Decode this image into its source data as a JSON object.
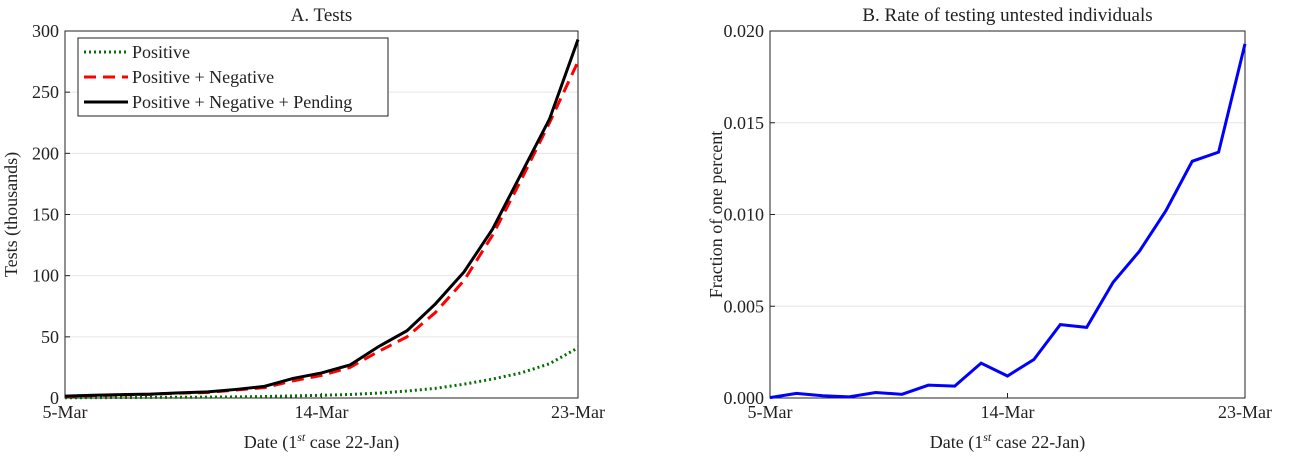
{
  "chart_data": [
    {
      "type": "line",
      "title": "A. Tests",
      "categories": [
        "5-Mar",
        null,
        null,
        null,
        null,
        null,
        null,
        null,
        null,
        "14-Mar",
        null,
        null,
        null,
        null,
        null,
        null,
        null,
        null,
        "23-Mar"
      ],
      "xlabel": [
        "Date (1",
        "st",
        " case 22-Jan)"
      ],
      "ylabel": "Tests (thousands)",
      "ylim": [
        0,
        300
      ],
      "yticks": [
        0,
        50,
        100,
        150,
        200,
        250,
        300
      ],
      "grid": true,
      "legend": "upper left",
      "series": [
        {
          "name": "Positive",
          "color": "#007000",
          "style": "dotted",
          "values": [
            0.2,
            0.3,
            0.4,
            0.5,
            0.6,
            0.7,
            0.9,
            1.2,
            1.7,
            2.2,
            2.9,
            4.0,
            5.7,
            7.9,
            11.3,
            15.5,
            20.5,
            28,
            41
          ]
        },
        {
          "name": "Positive + Negative",
          "color": "#ff0000",
          "style": "dashed",
          "values": [
            1.2,
            2,
            2.5,
            3,
            4,
            4.5,
            6.5,
            8.5,
            14,
            18.5,
            25,
            38,
            50,
            70,
            96,
            133,
            178,
            225,
            275
          ]
        },
        {
          "name": "Positive + Negative + Pending",
          "color": "#000000",
          "style": "solid",
          "values": [
            1.5,
            2.3,
            2.8,
            3.2,
            4.2,
            5,
            7,
            9.5,
            16,
            20.5,
            27,
            42,
            55,
            77,
            103,
            138,
            183,
            228,
            293
          ]
        }
      ]
    },
    {
      "type": "line",
      "title": "B. Rate of testing untested individuals",
      "categories": [
        "5-Mar",
        null,
        null,
        null,
        null,
        null,
        null,
        null,
        null,
        "14-Mar",
        null,
        null,
        null,
        null,
        null,
        null,
        null,
        null,
        "23-Mar"
      ],
      "xlabel": [
        "Date (1",
        "st",
        " case 22-Jan)"
      ],
      "ylabel": "Fraction of one percent",
      "ylim": [
        0,
        0.02
      ],
      "yticks": [
        {
          "value": 0,
          "label": "0.000"
        },
        {
          "value": 0.005,
          "label": "0.005"
        },
        {
          "value": 0.01,
          "label": "0.010"
        },
        {
          "value": 0.015,
          "label": "0.015"
        },
        {
          "value": 0.02,
          "label": "0.020"
        }
      ],
      "grid": true,
      "series": [
        {
          "color": "#0000ff",
          "style": "solid",
          "values": [
            2e-05,
            0.00025,
            0.00012,
            6e-05,
            0.0003,
            0.0002,
            0.0007,
            0.00065,
            0.0019,
            0.0012,
            0.0021,
            0.004,
            0.00385,
            0.0063,
            0.008,
            0.0102,
            0.0129,
            0.0134,
            0.0193
          ]
        }
      ]
    }
  ]
}
